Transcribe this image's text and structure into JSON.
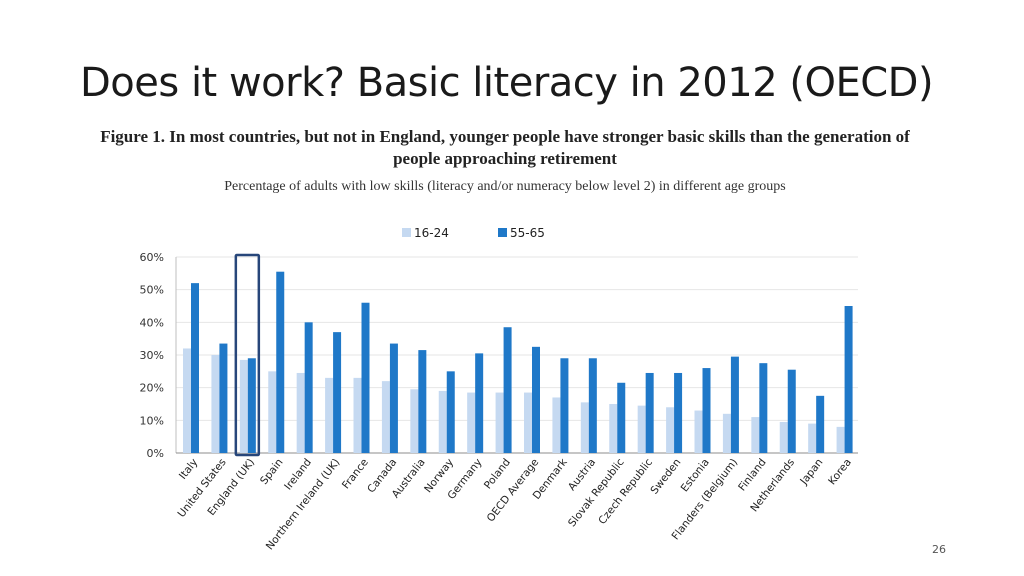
{
  "slide": {
    "title": "Does it work? Basic literacy in 2012 (OECD)",
    "page_number": "26"
  },
  "figure": {
    "title": "Figure 1. In most countries, but not in England, younger people have stronger basic skills than the generation of people approaching retirement",
    "subtitle": "Percentage of adults with low skills (literacy and/or numeracy below level 2) in different age groups"
  },
  "colors": {
    "series_16_24": "#c5d9f1",
    "series_55_65": "#1f78c8",
    "highlight_box": "#27467a"
  },
  "chart_data": {
    "type": "bar",
    "categories": [
      "Italy",
      "United States",
      "England (UK)",
      "Spain",
      "Ireland",
      "Northern Ireland (UK)",
      "France",
      "Canada",
      "Australia",
      "Norway",
      "Germany",
      "Poland",
      "OECD Average",
      "Denmark",
      "Austria",
      "Slovak Republic",
      "Czech Republic",
      "Sweden",
      "Estonia",
      "Flanders (Belgium)",
      "Finland",
      "Netherlands",
      "Japan",
      "Korea"
    ],
    "series": [
      {
        "name": "16-24",
        "values": [
          32,
          30,
          28.5,
          25,
          24.5,
          23,
          23,
          22,
          19.5,
          19,
          18.5,
          18.5,
          18.5,
          17,
          15.5,
          15,
          14.5,
          14,
          13,
          12,
          11,
          9.5,
          9,
          8
        ]
      },
      {
        "name": "55-65",
        "values": [
          52,
          33.5,
          29,
          55.5,
          40,
          37,
          46,
          33.5,
          31.5,
          25,
          30.5,
          38.5,
          32.5,
          29,
          29,
          21.5,
          24.5,
          24.5,
          26,
          29.5,
          27.5,
          25.5,
          17.5,
          45
        ]
      }
    ],
    "y_ticks": [
      "0%",
      "10%",
      "20%",
      "30%",
      "40%",
      "50%",
      "60%"
    ],
    "ylim": [
      0,
      60
    ],
    "highlight_category": "England (UK)",
    "legend_position": "top-center",
    "grid": true
  }
}
